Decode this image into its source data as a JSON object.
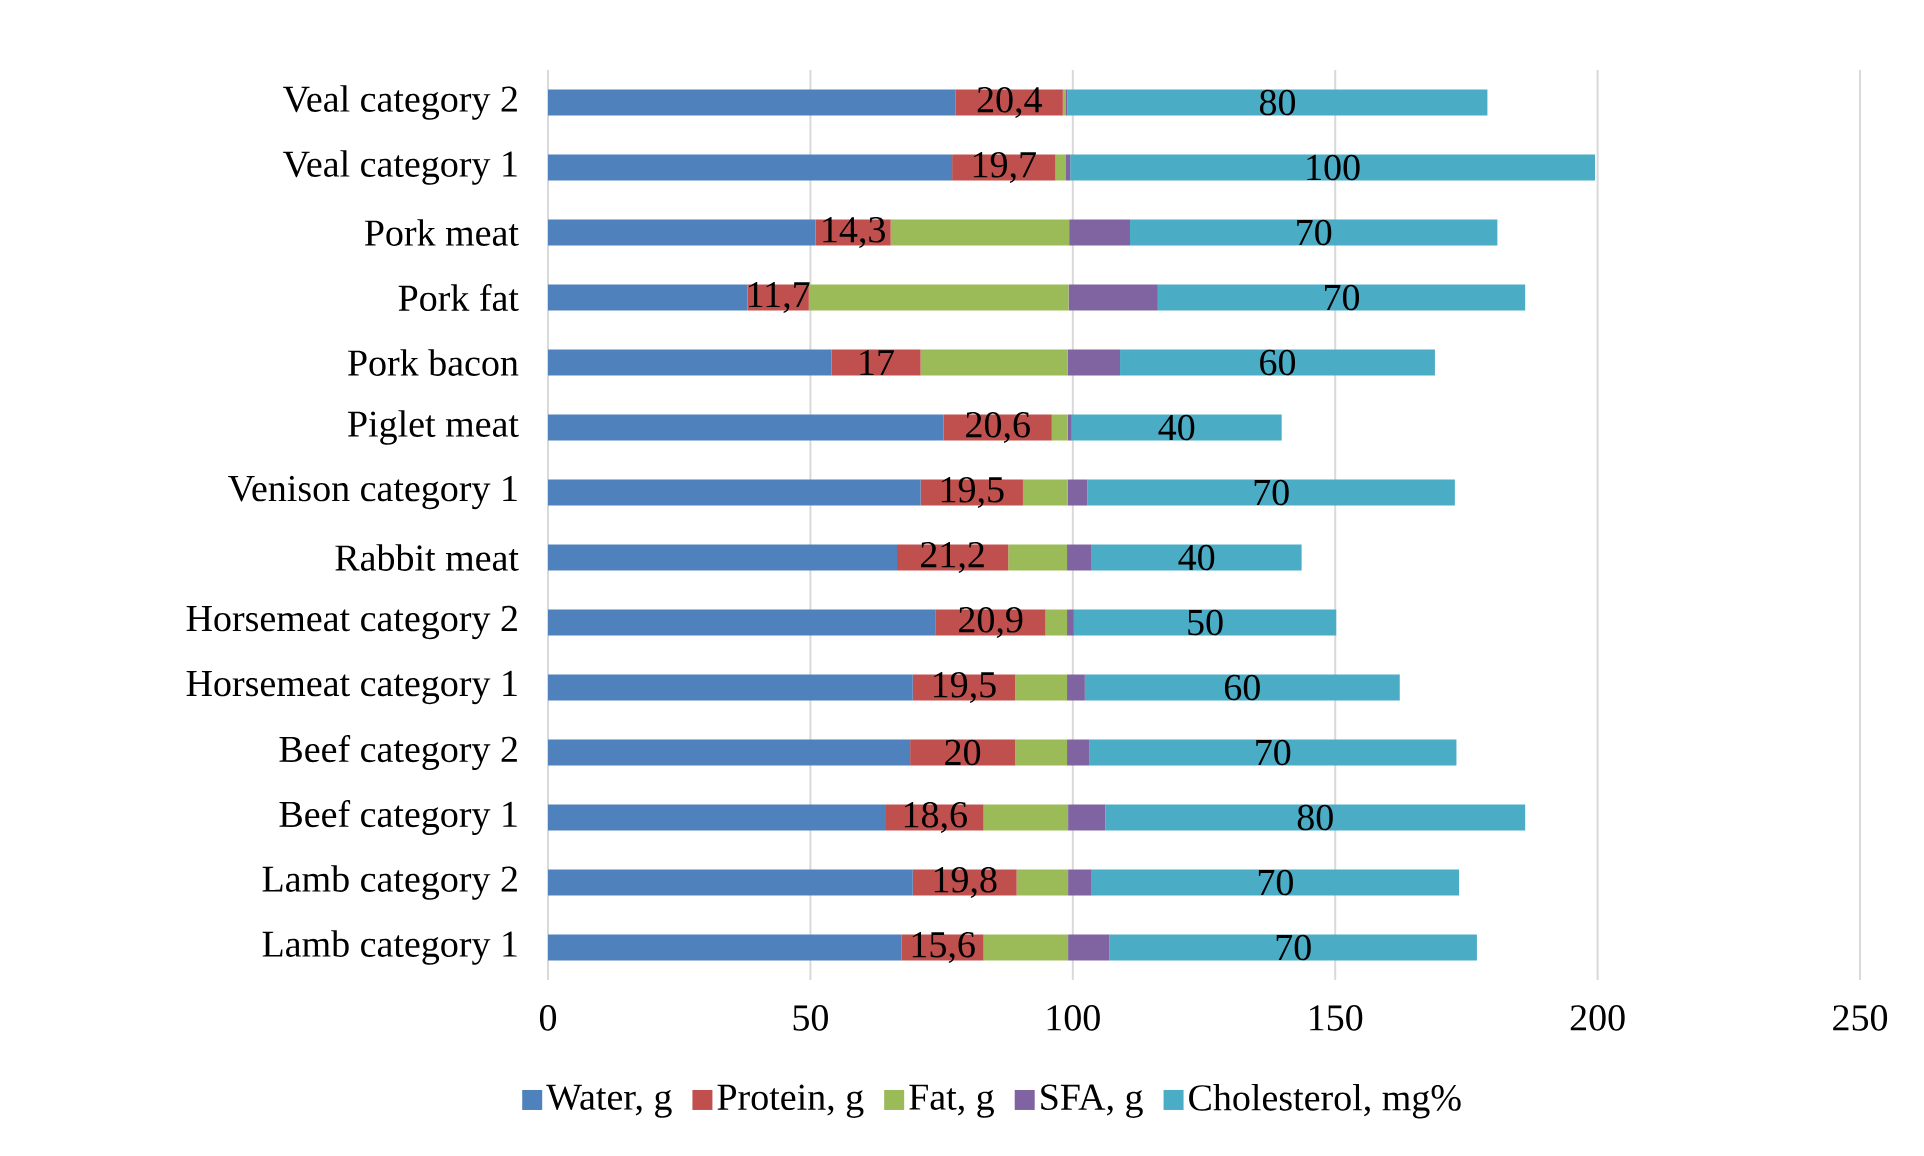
{
  "chart_data": {
    "type": "bar",
    "orientation": "horizontal",
    "stacked": true,
    "categories": [
      "Veal category 2",
      "Veal category 1",
      "Pork meat",
      "Pork fat",
      "Pork bacon",
      "Piglet meat",
      "Venison category 1",
      "Rabbit meat",
      "Horsemeat category 2",
      "Horsemeat category 1",
      "Beef category 2",
      "Beef category 1",
      "Lamb category 2",
      "Lamb category 1"
    ],
    "series": [
      {
        "name": "Water, g",
        "color": "#4f81bd",
        "values": [
          77.7,
          77,
          51,
          38,
          54,
          75.4,
          71,
          66.5,
          73.9,
          69.5,
          69,
          64.4,
          69.5,
          67.4
        ]
      },
      {
        "name": "Protein, g",
        "color": "#c0504d",
        "values": [
          20.4,
          19.7,
          14.3,
          11.7,
          17,
          20.6,
          19.5,
          21.2,
          20.9,
          19.5,
          20,
          18.6,
          19.8,
          15.6
        ],
        "value_labels": [
          "20,4",
          "19,7",
          "14,3",
          "11,7",
          "17",
          "20,6",
          "19,5",
          "21,2",
          "20,9",
          "19,5",
          "20",
          "18,6",
          "19,8",
          "15,6"
        ]
      },
      {
        "name": "Fat, g",
        "color": "#9bbb59",
        "values": [
          0.6,
          2,
          34,
          49.5,
          28,
          3,
          8.5,
          11.2,
          4.1,
          9.9,
          9.9,
          16.1,
          9.8,
          16.1
        ]
      },
      {
        "name": "SFA, g",
        "color": "#8064a2",
        "values": [
          0.3,
          0.8,
          11.6,
          17,
          10,
          0.8,
          3.8,
          4.7,
          1.3,
          3.4,
          4.2,
          7.1,
          4.5,
          7.9
        ]
      },
      {
        "name": "Cholesterol, mg%",
        "color": "#4bacc6",
        "values": [
          80,
          100,
          70,
          70,
          60,
          40,
          70,
          40,
          50,
          60,
          70,
          80,
          70,
          70
        ],
        "value_labels": [
          "80",
          "100",
          "70",
          "70",
          "60",
          "40",
          "70",
          "40",
          "50",
          "60",
          "70",
          "80",
          "70",
          "70"
        ]
      }
    ],
    "xlim": [
      0,
      250
    ],
    "xticks": [
      0,
      50,
      100,
      150,
      200,
      250
    ],
    "grid": "x",
    "legend": "bottom"
  }
}
